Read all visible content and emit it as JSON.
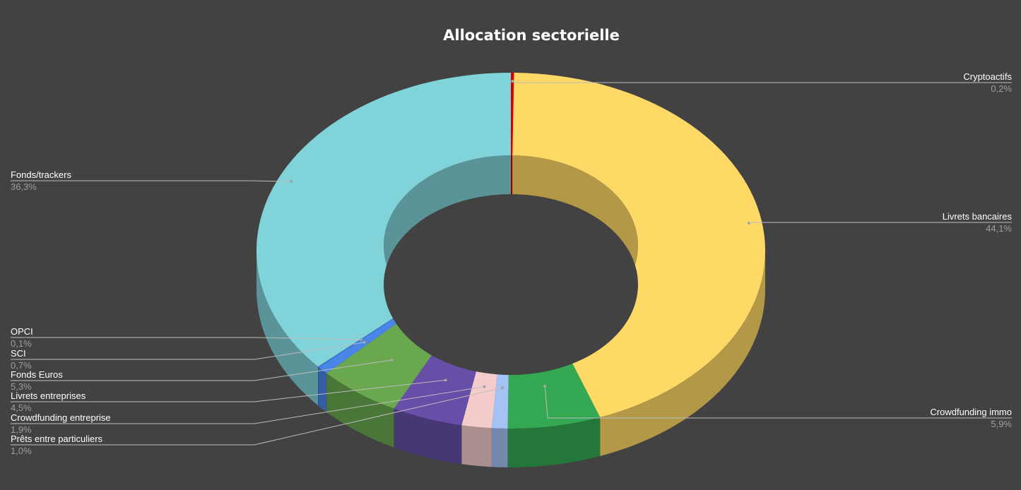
{
  "chart_data": {
    "type": "pie",
    "variant": "3d-donut",
    "title": "Allocation sectorielle",
    "background": "#424242",
    "slices": [
      {
        "name": "Cryptoactifs",
        "value_label": "0,2%",
        "value": 0.2,
        "color": "#d50000",
        "label_side": "right"
      },
      {
        "name": "Livrets bancaires",
        "value_label": "44,1%",
        "value": 44.1,
        "color": "#ffd966",
        "label_side": "right"
      },
      {
        "name": "Crowdfunding immo",
        "value_label": "5,9%",
        "value": 5.9,
        "color": "#34a853",
        "label_side": "right"
      },
      {
        "name": "Prêts entre particuliers",
        "value_label": "1,0%",
        "value": 1.0,
        "color": "#a4c2f4",
        "label_side": "left"
      },
      {
        "name": "Crowdfunding entreprise",
        "value_label": "1,9%",
        "value": 1.9,
        "color": "#f4cccc",
        "label_side": "left"
      },
      {
        "name": "Livrets entreprises",
        "value_label": "4,5%",
        "value": 4.5,
        "color": "#674ea7",
        "label_side": "left"
      },
      {
        "name": "Fonds Euros",
        "value_label": "5,3%",
        "value": 5.3,
        "color": "#6aa84f",
        "label_side": "left"
      },
      {
        "name": "SCI",
        "value_label": "0,7%",
        "value": 0.7,
        "color": "#4a86e8",
        "label_side": "left"
      },
      {
        "name": "OPCI",
        "value_label": "0,1%",
        "value": 0.1,
        "color": "#3c78d8",
        "label_side": "left"
      },
      {
        "name": "Fonds/trackers",
        "value_label": "36,3%",
        "value": 36.3,
        "color": "#80d4d9",
        "label_side": "left"
      }
    ]
  }
}
